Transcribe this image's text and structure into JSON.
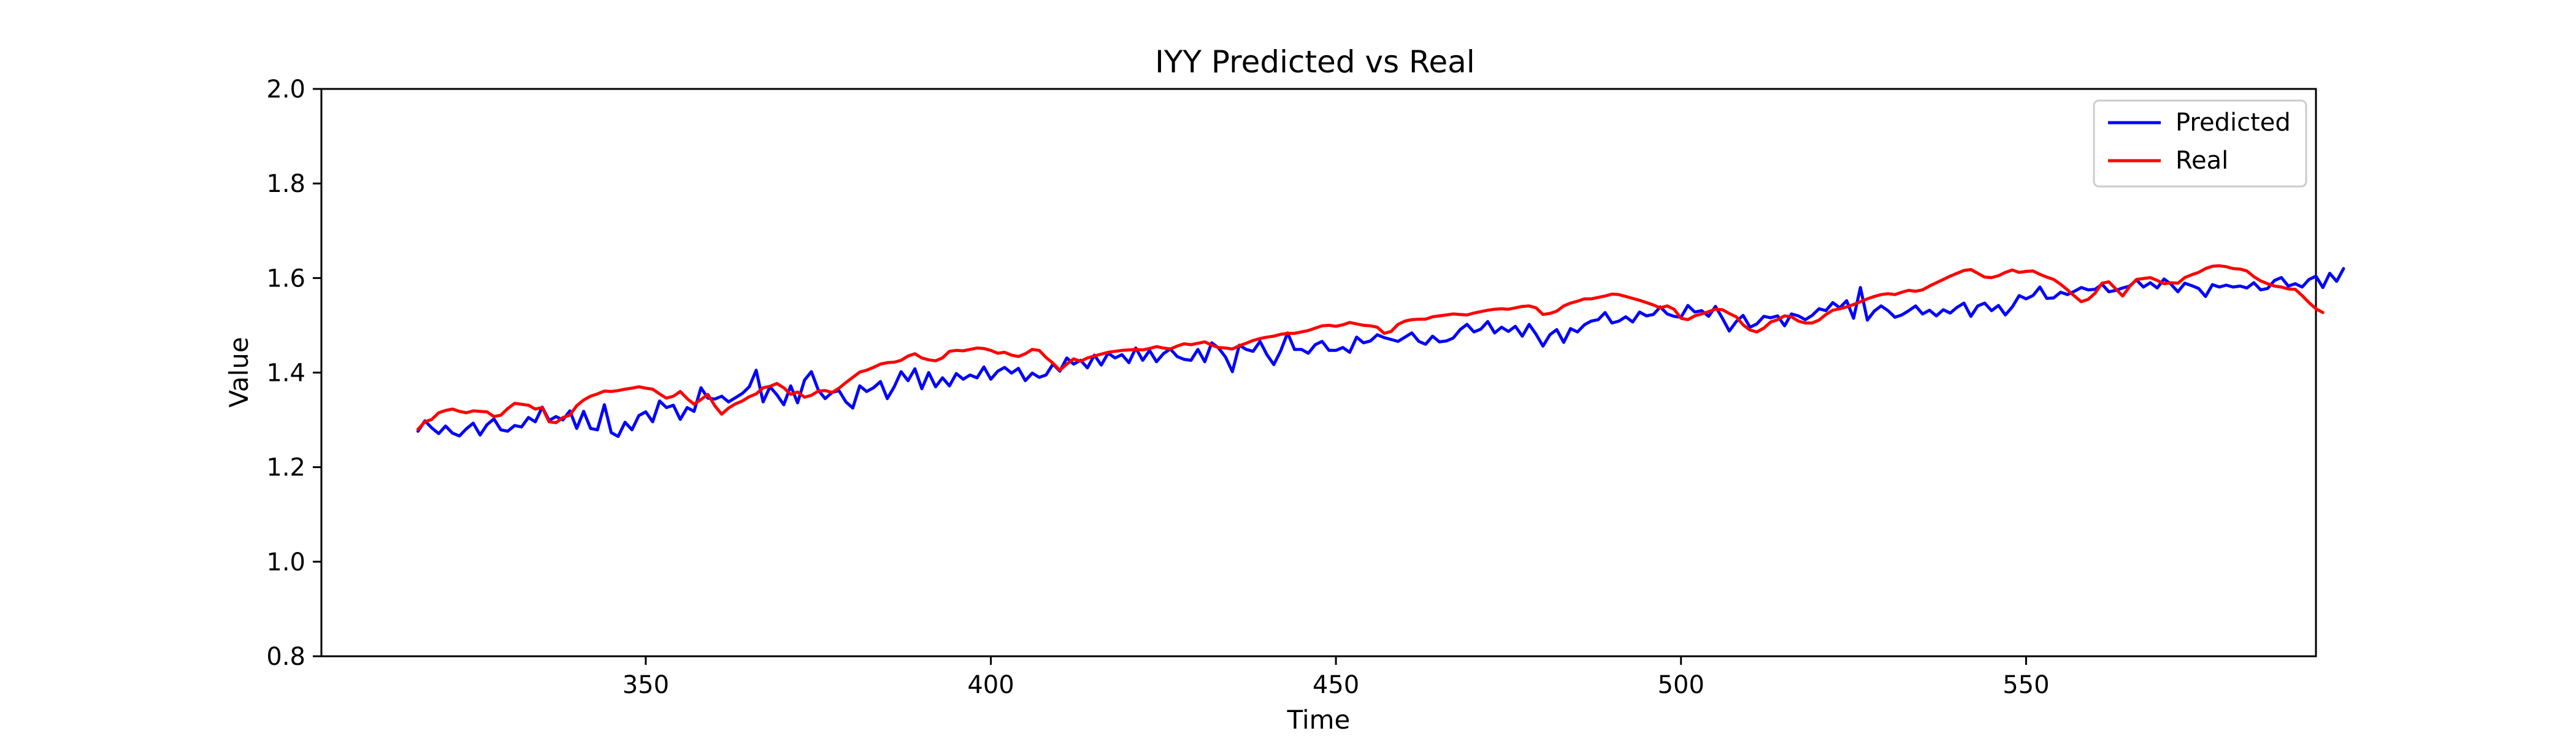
{
  "chart_data": {
    "type": "line",
    "title": "IYY Predicted vs Real",
    "xlabel": "Time",
    "ylabel": "Value",
    "xlim": [
      303,
      592
    ],
    "ylim": [
      0.8,
      2.0
    ],
    "x_ticks": [
      350,
      400,
      450,
      500,
      550
    ],
    "x_tick_labels": [
      "350",
      "400",
      "450",
      "500",
      "550"
    ],
    "y_ticks": [
      0.8,
      1.0,
      1.2,
      1.4,
      1.6,
      1.8,
      2.0
    ],
    "y_tick_labels": [
      "0.8",
      "1.0",
      "1.2",
      "1.4",
      "1.6",
      "1.8",
      "2.0"
    ],
    "grid": false,
    "legend_position": "top-right",
    "x_start": 317,
    "series": [
      {
        "name": "Predicted",
        "color": "#0000ff",
        "values": [
          1.276,
          1.298,
          1.283,
          1.271,
          1.287,
          1.272,
          1.266,
          1.281,
          1.293,
          1.268,
          1.29,
          1.302,
          1.279,
          1.276,
          1.288,
          1.285,
          1.305,
          1.296,
          1.327,
          1.299,
          1.307,
          1.3,
          1.319,
          1.282,
          1.318,
          1.282,
          1.279,
          1.332,
          1.273,
          1.265,
          1.295,
          1.279,
          1.309,
          1.317,
          1.296,
          1.34,
          1.326,
          1.331,
          1.301,
          1.326,
          1.318,
          1.368,
          1.346,
          1.344,
          1.35,
          1.338,
          1.347,
          1.356,
          1.37,
          1.405,
          1.338,
          1.37,
          1.353,
          1.332,
          1.372,
          1.336,
          1.384,
          1.402,
          1.363,
          1.345,
          1.358,
          1.362,
          1.338,
          1.325,
          1.372,
          1.36,
          1.368,
          1.381,
          1.345,
          1.37,
          1.402,
          1.383,
          1.408,
          1.366,
          1.4,
          1.37,
          1.389,
          1.372,
          1.398,
          1.386,
          1.395,
          1.389,
          1.412,
          1.386,
          1.403,
          1.411,
          1.399,
          1.409,
          1.383,
          1.399,
          1.39,
          1.395,
          1.418,
          1.403,
          1.431,
          1.418,
          1.426,
          1.41,
          1.437,
          1.416,
          1.441,
          1.431,
          1.438,
          1.421,
          1.452,
          1.426,
          1.447,
          1.423,
          1.44,
          1.45,
          1.434,
          1.428,
          1.426,
          1.449,
          1.423,
          1.463,
          1.452,
          1.433,
          1.402,
          1.458,
          1.449,
          1.445,
          1.466,
          1.438,
          1.417,
          1.446,
          1.484,
          1.449,
          1.449,
          1.441,
          1.459,
          1.466,
          1.447,
          1.447,
          1.453,
          1.443,
          1.475,
          1.463,
          1.467,
          1.48,
          1.474,
          1.47,
          1.466,
          1.475,
          1.484,
          1.466,
          1.46,
          1.477,
          1.465,
          1.467,
          1.473,
          1.491,
          1.502,
          1.486,
          1.492,
          1.508,
          1.484,
          1.496,
          1.487,
          1.498,
          1.477,
          1.502,
          1.481,
          1.456,
          1.48,
          1.491,
          1.464,
          1.493,
          1.486,
          1.501,
          1.509,
          1.512,
          1.527,
          1.505,
          1.509,
          1.518,
          1.507,
          1.528,
          1.52,
          1.523,
          1.539,
          1.524,
          1.519,
          1.517,
          1.542,
          1.528,
          1.531,
          1.519,
          1.54,
          1.515,
          1.488,
          1.508,
          1.521,
          1.496,
          1.503,
          1.519,
          1.516,
          1.52,
          1.499,
          1.524,
          1.52,
          1.512,
          1.521,
          1.535,
          1.531,
          1.548,
          1.537,
          1.552,
          1.515,
          1.58,
          1.511,
          1.53,
          1.541,
          1.531,
          1.517,
          1.522,
          1.531,
          1.541,
          1.524,
          1.532,
          1.52,
          1.533,
          1.526,
          1.538,
          1.547,
          1.519,
          1.541,
          1.547,
          1.531,
          1.542,
          1.522,
          1.539,
          1.563,
          1.556,
          1.563,
          1.581,
          1.557,
          1.558,
          1.57,
          1.565,
          1.572,
          1.58,
          1.575,
          1.576,
          1.587,
          1.571,
          1.574,
          1.579,
          1.583,
          1.596,
          1.581,
          1.59,
          1.579,
          1.598,
          1.587,
          1.571,
          1.589,
          1.584,
          1.578,
          1.561,
          1.586,
          1.581,
          1.585,
          1.581,
          1.583,
          1.579,
          1.59,
          1.575,
          1.578,
          1.595,
          1.601,
          1.583,
          1.588,
          1.581,
          1.597,
          1.604,
          1.58,
          1.61,
          1.593,
          1.62
        ],
        "note": ""
      },
      {
        "name": "Real",
        "color": "#ff0000",
        "values": [
          1.28,
          1.296,
          1.301,
          1.315,
          1.32,
          1.323,
          1.318,
          1.315,
          1.319,
          1.318,
          1.317,
          1.307,
          1.31,
          1.324,
          1.335,
          1.333,
          1.331,
          1.323,
          1.326,
          1.296,
          1.294,
          1.305,
          1.31,
          1.33,
          1.342,
          1.35,
          1.355,
          1.361,
          1.36,
          1.362,
          1.365,
          1.367,
          1.37,
          1.367,
          1.365,
          1.355,
          1.346,
          1.35,
          1.36,
          1.345,
          1.333,
          1.343,
          1.354,
          1.33,
          1.312,
          1.325,
          1.334,
          1.34,
          1.349,
          1.355,
          1.368,
          1.371,
          1.377,
          1.368,
          1.354,
          1.359,
          1.348,
          1.352,
          1.361,
          1.362,
          1.358,
          1.367,
          1.379,
          1.39,
          1.401,
          1.405,
          1.411,
          1.418,
          1.421,
          1.422,
          1.426,
          1.435,
          1.44,
          1.431,
          1.427,
          1.425,
          1.431,
          1.445,
          1.447,
          1.446,
          1.449,
          1.452,
          1.451,
          1.447,
          1.441,
          1.443,
          1.437,
          1.434,
          1.44,
          1.449,
          1.447,
          1.432,
          1.42,
          1.405,
          1.418,
          1.429,
          1.424,
          1.431,
          1.435,
          1.439,
          1.443,
          1.445,
          1.447,
          1.448,
          1.449,
          1.448,
          1.451,
          1.455,
          1.452,
          1.45,
          1.456,
          1.461,
          1.459,
          1.462,
          1.465,
          1.458,
          1.453,
          1.452,
          1.45,
          1.457,
          1.462,
          1.468,
          1.472,
          1.475,
          1.477,
          1.481,
          1.483,
          1.483,
          1.486,
          1.489,
          1.494,
          1.499,
          1.5,
          1.498,
          1.501,
          1.506,
          1.503,
          1.5,
          1.499,
          1.496,
          1.483,
          1.487,
          1.502,
          1.509,
          1.512,
          1.513,
          1.513,
          1.518,
          1.52,
          1.522,
          1.524,
          1.523,
          1.522,
          1.526,
          1.529,
          1.532,
          1.534,
          1.535,
          1.534,
          1.537,
          1.54,
          1.541,
          1.537,
          1.523,
          1.525,
          1.53,
          1.541,
          1.547,
          1.551,
          1.556,
          1.556,
          1.559,
          1.562,
          1.566,
          1.565,
          1.561,
          1.557,
          1.553,
          1.548,
          1.543,
          1.537,
          1.541,
          1.534,
          1.515,
          1.512,
          1.52,
          1.524,
          1.529,
          1.534,
          1.533,
          1.525,
          1.518,
          1.501,
          1.49,
          1.486,
          1.494,
          1.507,
          1.512,
          1.52,
          1.518,
          1.509,
          1.505,
          1.505,
          1.511,
          1.523,
          1.532,
          1.535,
          1.539,
          1.544,
          1.55,
          1.556,
          1.561,
          1.565,
          1.567,
          1.565,
          1.57,
          1.574,
          1.572,
          1.575,
          1.583,
          1.59,
          1.597,
          1.604,
          1.61,
          1.616,
          1.618,
          1.61,
          1.602,
          1.601,
          1.605,
          1.612,
          1.617,
          1.612,
          1.614,
          1.615,
          1.608,
          1.602,
          1.597,
          1.587,
          1.575,
          1.562,
          1.55,
          1.555,
          1.568,
          1.589,
          1.592,
          1.577,
          1.562,
          1.582,
          1.597,
          1.599,
          1.601,
          1.595,
          1.588,
          1.59,
          1.589,
          1.601,
          1.607,
          1.612,
          1.62,
          1.625,
          1.626,
          1.624,
          1.62,
          1.619,
          1.615,
          1.603,
          1.594,
          1.588,
          1.583,
          1.581,
          1.577,
          1.576,
          1.563,
          1.548,
          1.535,
          1.527
        ]
      }
    ]
  }
}
